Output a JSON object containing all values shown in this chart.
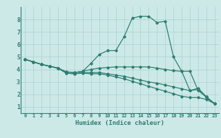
{
  "xlabel": "Humidex (Indice chaleur)",
  "xlim": [
    -0.5,
    23.5
  ],
  "ylim": [
    0.5,
    9.0
  ],
  "xticks": [
    0,
    1,
    2,
    3,
    4,
    5,
    6,
    7,
    8,
    9,
    10,
    11,
    12,
    13,
    14,
    15,
    16,
    17,
    18,
    19,
    20,
    21,
    22,
    23
  ],
  "yticks": [
    1,
    2,
    3,
    4,
    5,
    6,
    7,
    8
  ],
  "background_color": "#cce9e7",
  "line_color": "#2e7d72",
  "grid_color": "#afd5d2",
  "lines": [
    {
      "x": [
        0,
        1,
        2,
        3,
        4,
        5,
        6,
        7,
        8,
        9,
        10,
        11,
        12,
        13,
        14,
        15,
        16,
        17,
        18,
        19,
        20,
        21,
        22,
        23
      ],
      "y": [
        4.8,
        4.6,
        4.4,
        4.25,
        4.1,
        3.8,
        3.75,
        3.85,
        4.5,
        5.2,
        5.5,
        5.5,
        6.6,
        8.1,
        8.25,
        8.25,
        7.75,
        7.85,
        5.0,
        3.85,
        2.3,
        2.5,
        1.8,
        1.25
      ]
    },
    {
      "x": [
        0,
        1,
        2,
        3,
        4,
        5,
        6,
        7,
        8,
        9,
        10,
        11,
        12,
        13,
        14,
        15,
        16,
        17,
        18,
        19,
        20,
        21,
        22,
        23
      ],
      "y": [
        4.8,
        4.6,
        4.4,
        4.25,
        4.1,
        3.8,
        3.75,
        3.85,
        4.0,
        4.1,
        4.15,
        4.2,
        4.2,
        4.2,
        4.2,
        4.2,
        4.1,
        4.0,
        3.9,
        3.85,
        3.85,
        2.3,
        1.8,
        1.25
      ]
    },
    {
      "x": [
        0,
        1,
        2,
        3,
        4,
        5,
        6,
        7,
        8,
        9,
        10,
        11,
        12,
        13,
        14,
        15,
        16,
        17,
        18,
        19,
        20,
        21,
        22,
        23
      ],
      "y": [
        4.8,
        4.6,
        4.4,
        4.25,
        4.1,
        3.7,
        3.65,
        3.75,
        3.75,
        3.75,
        3.65,
        3.55,
        3.45,
        3.3,
        3.15,
        3.0,
        2.9,
        2.75,
        2.6,
        2.45,
        2.3,
        2.4,
        1.75,
        1.25
      ]
    },
    {
      "x": [
        0,
        1,
        2,
        3,
        4,
        5,
        6,
        7,
        8,
        9,
        10,
        11,
        12,
        13,
        14,
        15,
        16,
        17,
        18,
        19,
        20,
        21,
        22,
        23
      ],
      "y": [
        4.8,
        4.6,
        4.4,
        4.25,
        4.1,
        3.7,
        3.65,
        3.7,
        3.65,
        3.65,
        3.55,
        3.4,
        3.25,
        3.05,
        2.85,
        2.65,
        2.45,
        2.25,
        2.05,
        1.85,
        1.75,
        1.75,
        1.6,
        1.25
      ]
    }
  ]
}
